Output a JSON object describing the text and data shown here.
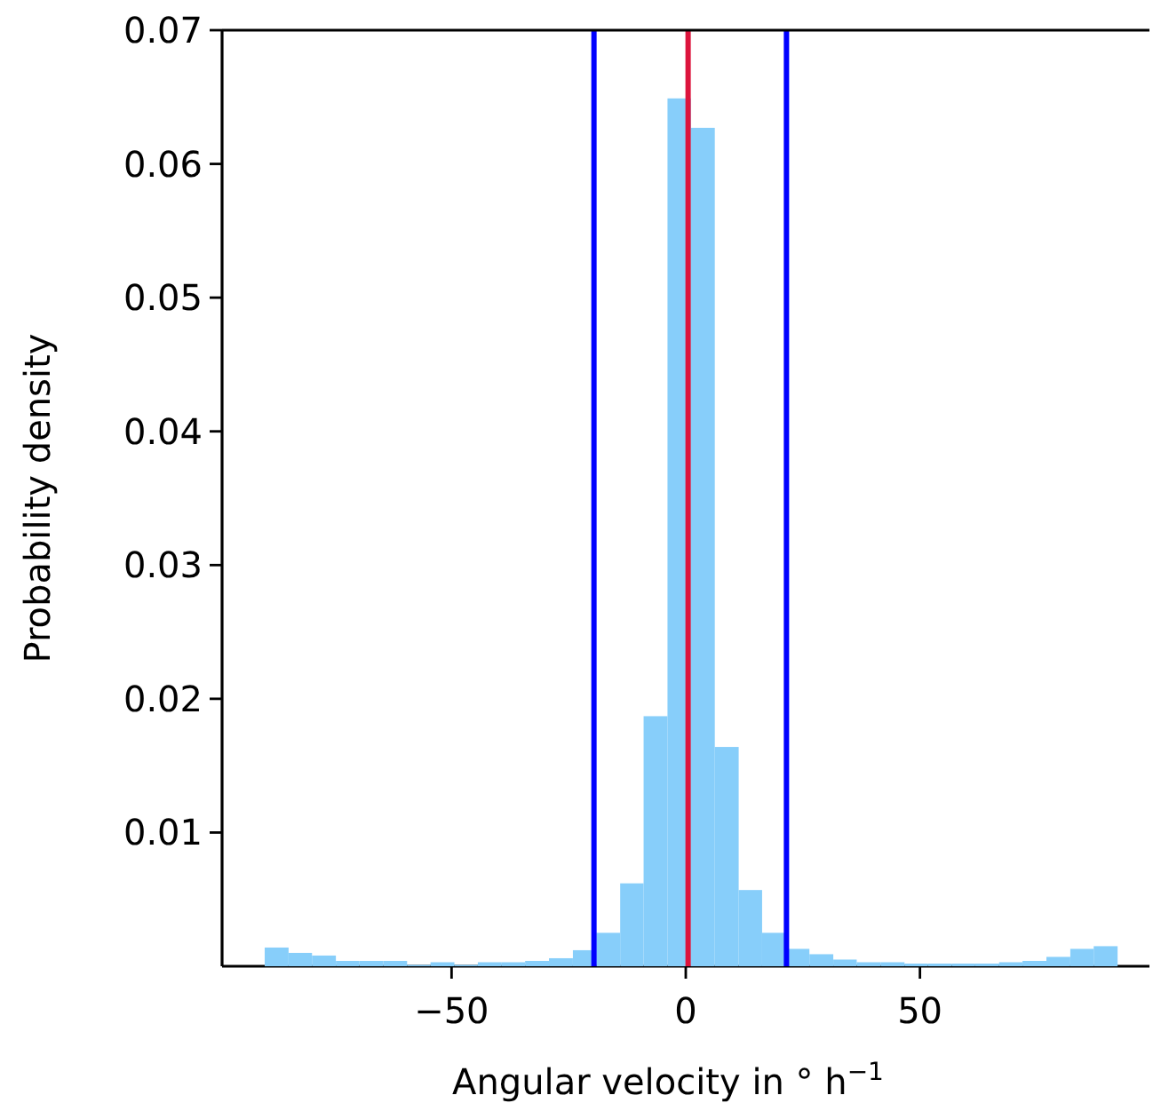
{
  "chart_data": {
    "type": "histogram",
    "xlabel": "Angular velocity in ° h$^{−1}$",
    "ylabel": "Probability density",
    "bins": [
      -89.9,
      -84.8,
      -79.8,
      -74.7,
      -69.7,
      -64.6,
      -59.5,
      -54.5,
      -49.4,
      -44.4,
      -39.3,
      -34.3,
      -29.2,
      -24.1,
      -19.1,
      -14.0,
      -9.0,
      -3.9,
      1.1,
      6.2,
      11.3,
      16.3,
      21.4,
      26.4,
      31.5,
      36.5,
      41.6,
      46.7,
      51.7,
      56.8,
      61.8,
      66.9,
      71.9,
      77.0,
      82.1,
      87.1,
      92.2
    ],
    "values": [
      0.0014,
      0.001,
      0.0008,
      0.0004,
      0.0004,
      0.0004,
      0.0001,
      0.0003,
      0.0001,
      0.0003,
      0.0003,
      0.0004,
      0.0006,
      0.0012,
      0.0025,
      0.0062,
      0.0187,
      0.0649,
      0.0627,
      0.0164,
      0.0057,
      0.0025,
      0.0013,
      0.0009,
      0.0005,
      0.0003,
      0.0003,
      0.0002,
      0.0002,
      0.0002,
      0.0002,
      0.0003,
      0.0004,
      0.0007,
      0.0013,
      0.0015
    ],
    "color": "#87cefa",
    "xlim": [
      -99,
      99
    ],
    "xticks": [
      {
        "value": -50,
        "label": "−50"
      },
      0,
      50
    ],
    "ylim": [
      0,
      0.07
    ],
    "yticks": [
      0.01,
      0.02,
      0.03,
      0.04,
      0.05,
      0.06,
      0.07
    ],
    "ref_lines": [
      {
        "axis": "x",
        "value": -19.6,
        "color": "#0000ff"
      },
      {
        "axis": "x",
        "value": 21.5,
        "color": "#0000ff"
      },
      {
        "axis": "x",
        "value": 0.5,
        "color": "#dc143c"
      }
    ],
    "grid": false
  }
}
